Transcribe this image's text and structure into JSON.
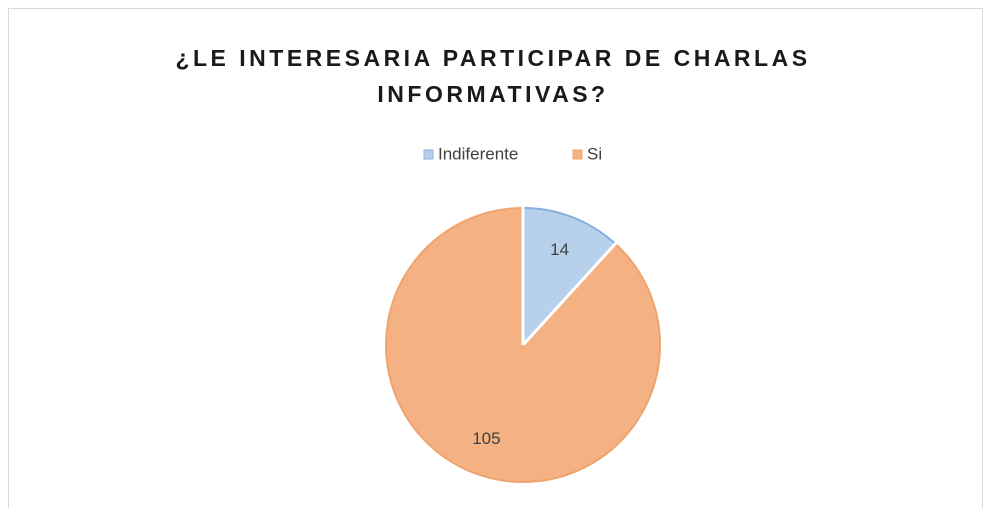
{
  "chart_data": {
    "type": "pie",
    "title": "¿LE INTERESARIA PARTICIPAR DE CHARLAS INFORMATIVAS?",
    "categories": [
      "Indiferente",
      "Si"
    ],
    "values": [
      14,
      105
    ],
    "colors": [
      "#b7d0ec",
      "#f4b183"
    ],
    "edge_colors": [
      "#86aee0",
      "#efa46e"
    ],
    "legend": "top"
  }
}
